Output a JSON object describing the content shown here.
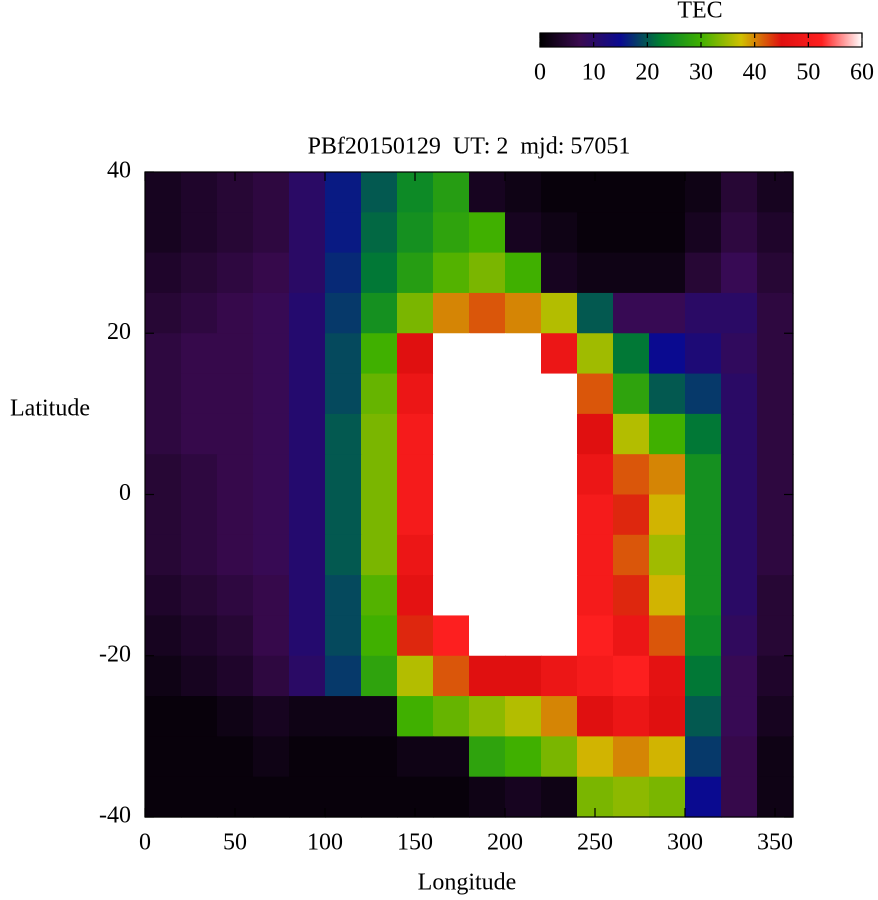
{
  "chart_data": {
    "type": "heatmap",
    "title": "PBf20150129  UT: 2  mjd: 57051",
    "x_label": "Longitude",
    "y_label": "Latitude",
    "colorbar_label": "TEC",
    "x": [
      10,
      30,
      50,
      70,
      90,
      110,
      130,
      150,
      170,
      190,
      210,
      230,
      250,
      270,
      290,
      310,
      330,
      350
    ],
    "y": [
      37.5,
      32.5,
      27.5,
      22.5,
      17.5,
      12.5,
      7.5,
      2.5,
      -2.5,
      -7.5,
      -12.5,
      -17.5,
      -22.5,
      -27.5,
      -32.5,
      -37.5
    ],
    "z": [
      [
        3,
        4,
        5,
        6,
        10,
        16,
        20,
        24,
        27,
        3,
        2,
        1,
        1,
        1,
        1,
        2,
        5,
        3
      ],
      [
        3,
        4,
        5,
        6,
        10,
        16,
        21,
        25,
        28,
        30,
        3,
        2,
        1,
        1,
        1,
        3,
        6,
        4
      ],
      [
        4,
        5,
        6,
        7,
        10,
        17,
        22,
        27,
        31,
        33,
        30,
        3,
        2,
        2,
        2,
        5,
        8,
        5
      ],
      [
        5,
        6,
        7,
        8,
        11,
        18,
        25,
        33,
        40,
        42,
        40,
        36,
        20,
        8,
        8,
        10,
        10,
        6
      ],
      [
        6,
        7,
        7,
        8,
        11,
        19,
        30,
        45,
        60,
        60,
        60,
        48,
        35,
        22,
        15,
        12,
        9,
        6
      ],
      [
        6,
        7,
        7,
        8,
        11,
        19,
        32,
        48,
        60,
        60,
        60,
        60,
        42,
        28,
        20,
        18,
        10,
        6
      ],
      [
        6,
        7,
        7,
        8,
        11,
        20,
        33,
        50,
        60,
        60,
        60,
        60,
        45,
        36,
        30,
        22,
        10,
        6
      ],
      [
        5,
        6,
        7,
        8,
        11,
        20,
        33,
        50,
        60,
        60,
        60,
        60,
        48,
        42,
        40,
        25,
        10,
        6
      ],
      [
        5,
        6,
        7,
        8,
        11,
        20,
        33,
        50,
        60,
        60,
        60,
        60,
        50,
        44,
        38,
        25,
        10,
        6
      ],
      [
        5,
        6,
        7,
        8,
        11,
        20,
        33,
        48,
        60,
        60,
        60,
        60,
        50,
        42,
        35,
        25,
        10,
        6
      ],
      [
        4,
        5,
        6,
        7,
        11,
        19,
        31,
        46,
        60,
        60,
        60,
        60,
        50,
        44,
        38,
        25,
        10,
        5
      ],
      [
        3,
        4,
        5,
        7,
        11,
        19,
        30,
        44,
        52,
        60,
        60,
        60,
        52,
        48,
        42,
        24,
        9,
        5
      ],
      [
        2,
        3,
        4,
        6,
        10,
        18,
        28,
        36,
        42,
        45,
        45,
        48,
        50,
        52,
        46,
        22,
        8,
        4
      ],
      [
        1,
        1,
        2,
        3,
        2,
        2,
        2,
        30,
        32,
        34,
        36,
        40,
        45,
        48,
        45,
        20,
        8,
        3
      ],
      [
        1,
        1,
        1,
        2,
        1,
        1,
        1,
        2,
        2,
        28,
        30,
        33,
        38,
        40,
        38,
        18,
        7,
        2
      ],
      [
        1,
        1,
        1,
        1,
        1,
        1,
        1,
        1,
        1,
        2,
        3,
        2,
        33,
        34,
        33,
        15,
        7,
        2
      ]
    ],
    "xlim": [
      0,
      360
    ],
    "ylim": [
      -40,
      40
    ],
    "xticks": [
      0,
      50,
      100,
      150,
      200,
      250,
      300,
      350
    ],
    "yticks": [
      -40,
      -20,
      0,
      20,
      40
    ],
    "clim": [
      0,
      60
    ],
    "cticks": [
      0,
      10,
      20,
      30,
      40,
      50,
      60
    ],
    "colormap": [
      "#000000",
      "#3a0a50",
      "#0a0a90",
      "#008030",
      "#40b000",
      "#d0c000",
      "#e01010",
      "#ff2020",
      "#ffffff"
    ]
  }
}
